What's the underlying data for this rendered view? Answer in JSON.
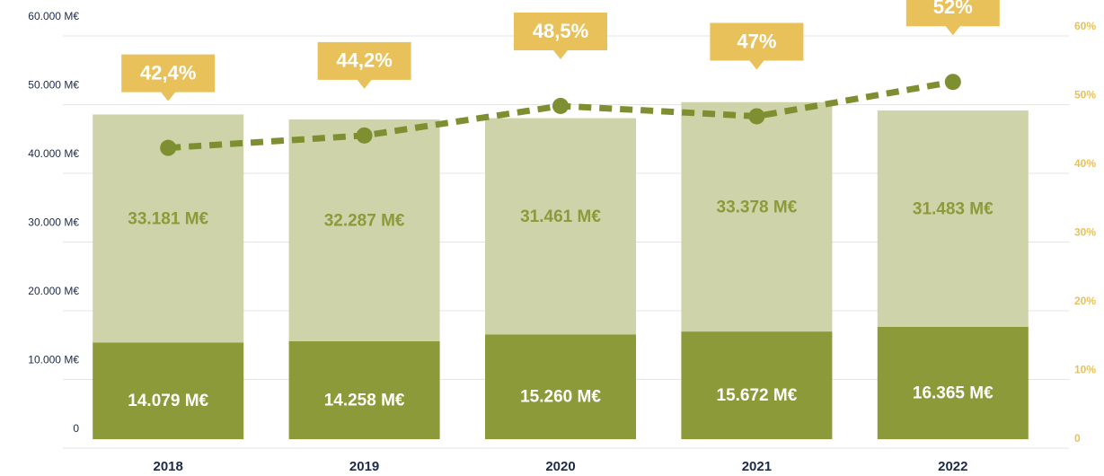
{
  "chart_data": {
    "type": "bar",
    "categories": [
      "2018",
      "2019",
      "2020",
      "2021",
      "2022"
    ],
    "series": [
      {
        "color": "#8c9a3a",
        "values": [
          14079,
          14258,
          15260,
          15672,
          16365
        ],
        "value_labels": [
          "14.079 M€",
          "14.258 M€",
          "15.260 M€",
          "15.672 M€",
          "16.365 M€"
        ]
      },
      {
        "color": "#cfd3a9",
        "values": [
          33181,
          32287,
          31461,
          33378,
          31483
        ],
        "value_labels": [
          "33.181 M€",
          "32.287 M€",
          "31.461 M€",
          "33.378 M€",
          "31.483 M€"
        ]
      },
      {
        "type": "line",
        "axis": "y2",
        "color": "#7d8f30",
        "values": [
          42.4,
          44.2,
          48.5,
          47,
          52
        ],
        "value_labels": [
          "42,4%",
          "44,2%",
          "48,5%",
          "47%",
          "52%"
        ]
      }
    ],
    "ylim": [
      0,
      60000
    ],
    "yticks": [
      0,
      {
        "value": 10000,
        "label": "10.000 M€"
      },
      {
        "value": 20000,
        "label": "20.000 M€"
      },
      {
        "value": 30000,
        "label": "30.000 M€"
      },
      {
        "value": 40000,
        "label": "40.000 M€"
      },
      {
        "value": 50000,
        "label": "50.000 M€"
      },
      {
        "value": 60000,
        "label": "60.000 M€"
      }
    ],
    "y2lim": [
      0,
      60
    ],
    "y2ticks": [
      0,
      {
        "value": 10,
        "label": "10%"
      },
      {
        "value": 20,
        "label": "20%"
      },
      {
        "value": 30,
        "label": "30%"
      },
      {
        "value": 40,
        "label": "40%"
      },
      {
        "value": 50,
        "label": "50%"
      },
      {
        "value": 60,
        "label": "60%"
      }
    ],
    "grid": true,
    "callout_color": "#e8c15a"
  }
}
